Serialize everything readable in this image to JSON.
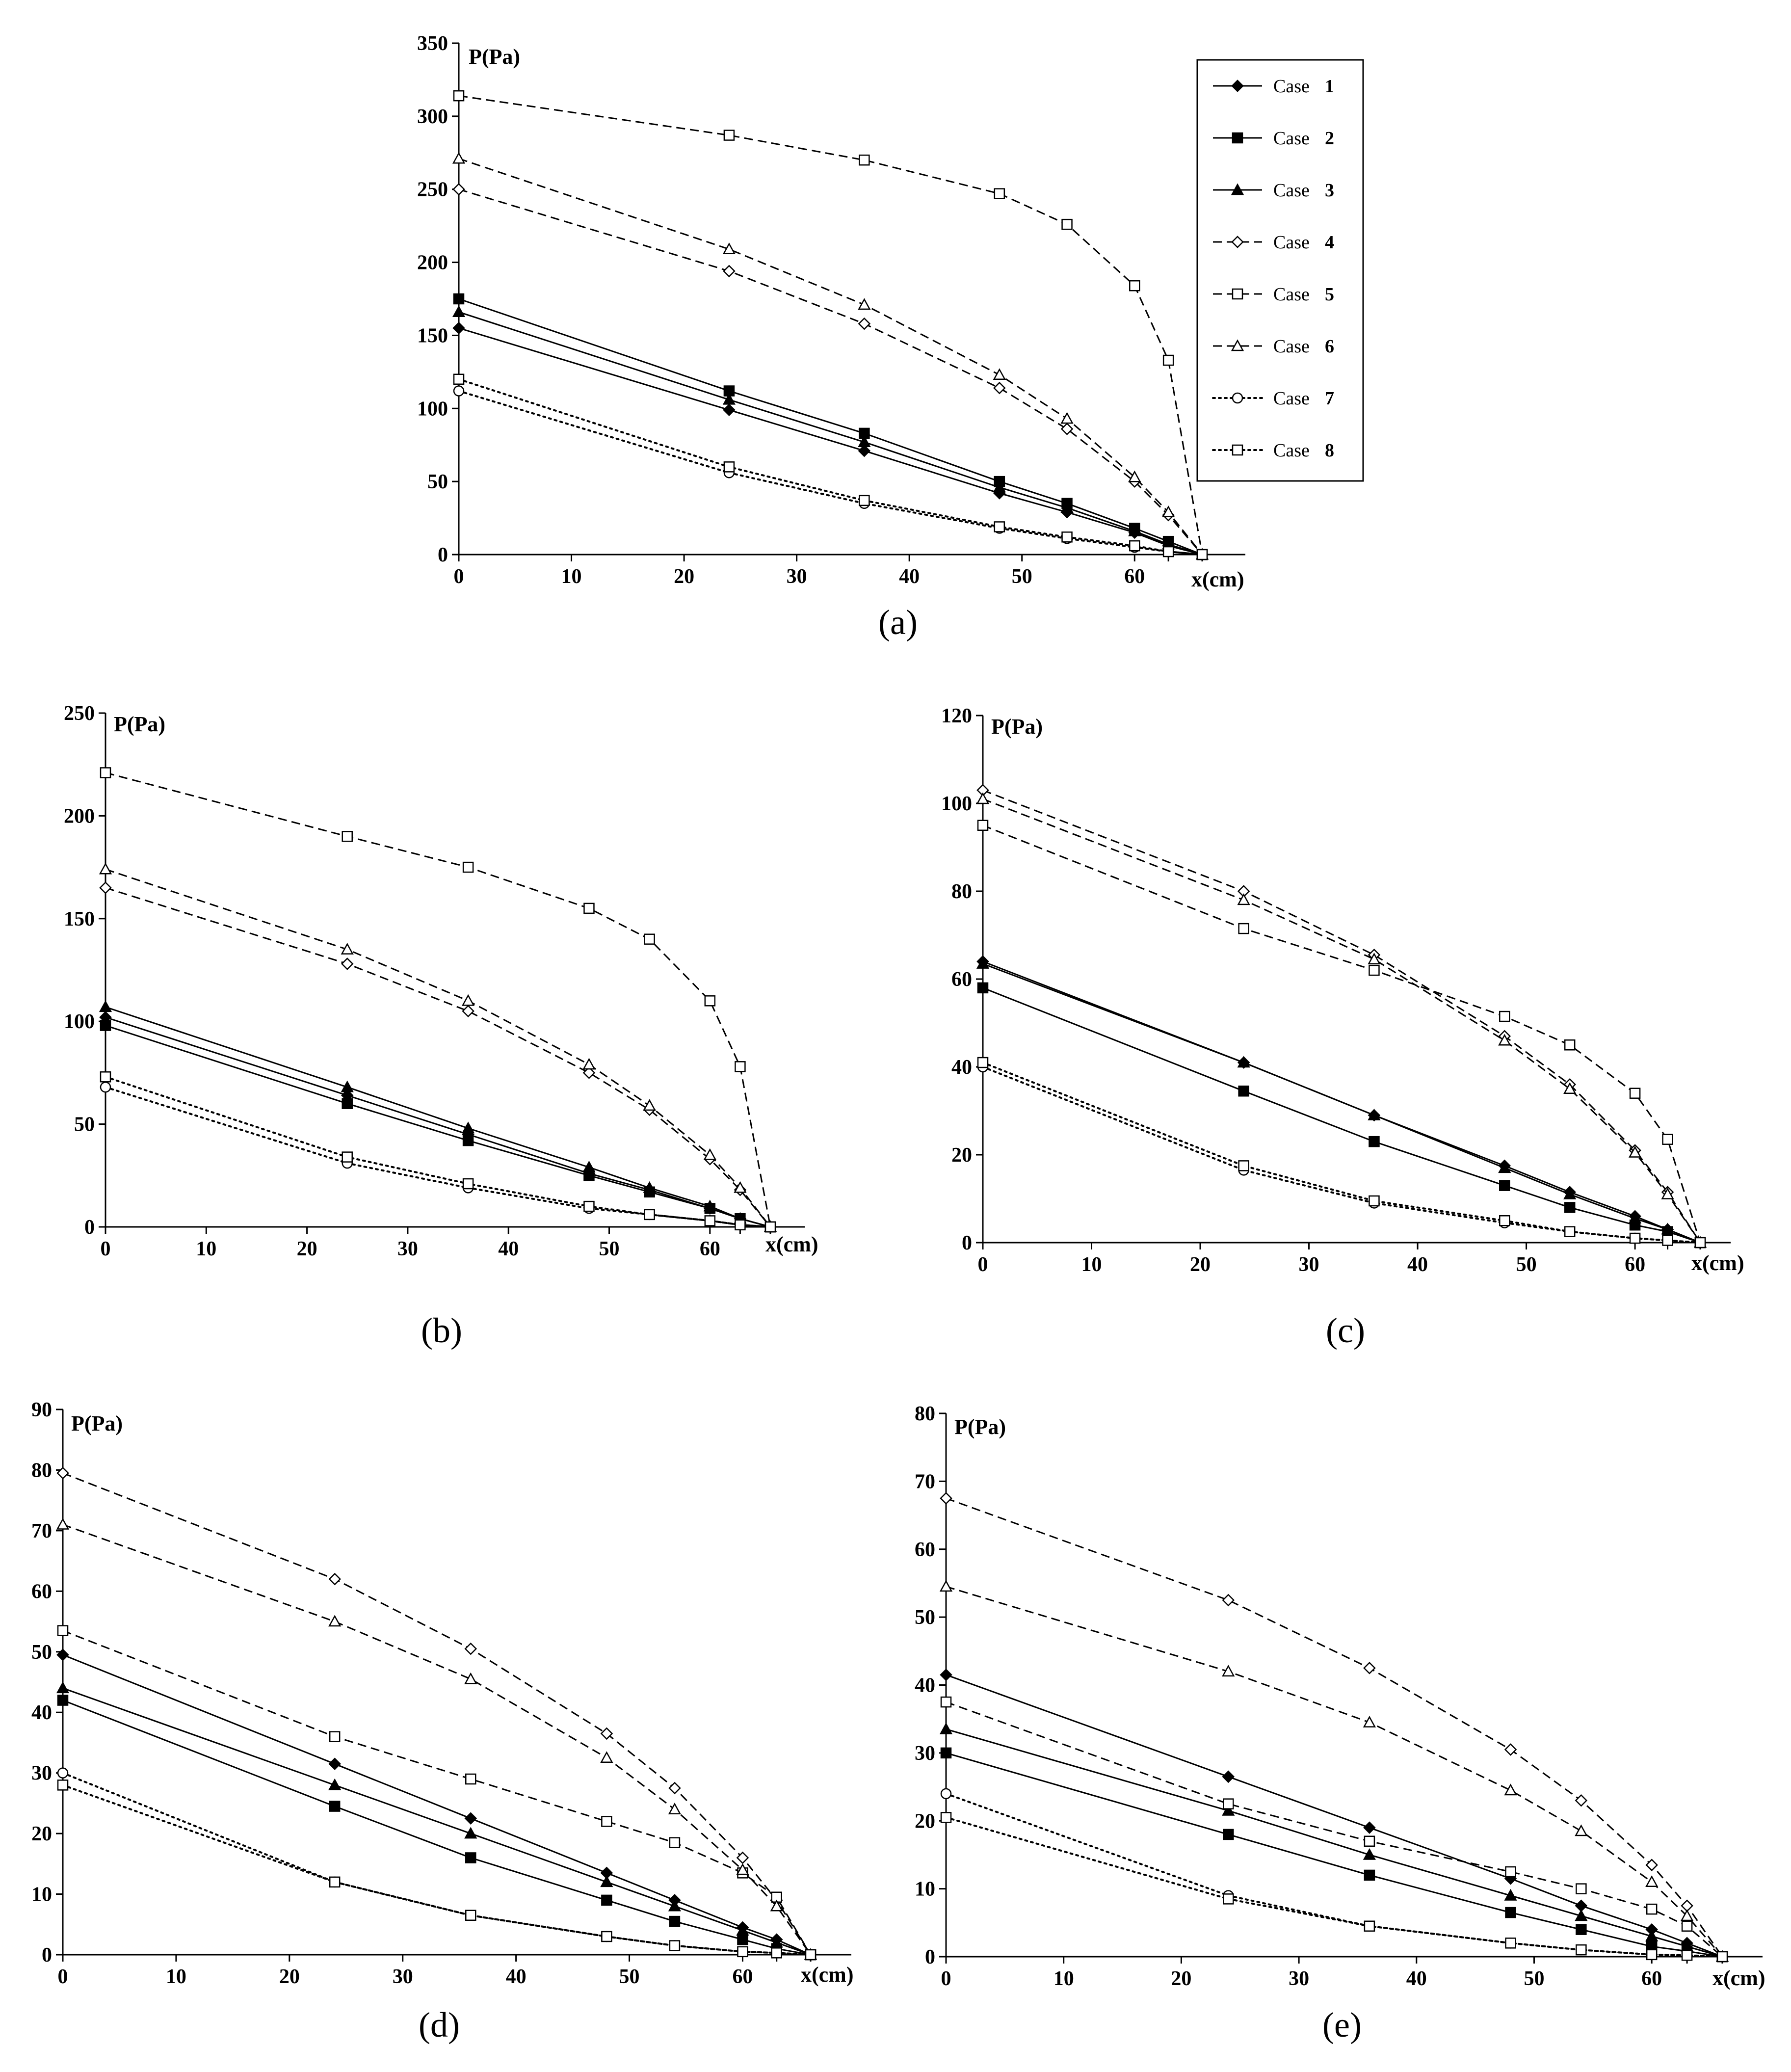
{
  "legend": {
    "case_word": "Case",
    "entries": [
      {
        "num": "1",
        "marker": "filled-diamond",
        "line": "solid"
      },
      {
        "num": "2",
        "marker": "filled-square",
        "line": "solid"
      },
      {
        "num": "3",
        "marker": "filled-triangle",
        "line": "solid"
      },
      {
        "num": "4",
        "marker": "open-diamond",
        "line": "dashed"
      },
      {
        "num": "5",
        "marker": "open-square",
        "line": "dashed"
      },
      {
        "num": "6",
        "marker": "open-triangle",
        "line": "dashed"
      },
      {
        "num": "7",
        "marker": "open-circle",
        "line": "dotted"
      },
      {
        "num": "8",
        "marker": "open-square",
        "line": "dotted"
      }
    ]
  },
  "chart_data": [
    {
      "type": "line",
      "panel_label": "(a)",
      "ylabel": "P(Pa)",
      "xlabel": "x(cm)",
      "ylim": [
        0,
        350
      ],
      "yticks": [
        "0",
        "50",
        "100",
        "150",
        "200",
        "250",
        "300",
        "350"
      ],
      "xticks": [
        "0",
        "10",
        "20",
        "30",
        "40",
        "50",
        "60"
      ],
      "x": [
        0,
        24,
        36,
        48,
        54,
        60,
        63,
        66
      ],
      "series": [
        {
          "name": "Case 1",
          "values": [
            155,
            99,
            71,
            42,
            29,
            15,
            6,
            0
          ]
        },
        {
          "name": "Case 2",
          "values": [
            175,
            112,
            83,
            50,
            35,
            18,
            9,
            0
          ]
        },
        {
          "name": "Case 3",
          "values": [
            166,
            106,
            77,
            46,
            32,
            16,
            7,
            0
          ]
        },
        {
          "name": "Case 4",
          "values": [
            250,
            194,
            158,
            114,
            86,
            50,
            27,
            0
          ]
        },
        {
          "name": "Case 5",
          "values": [
            314,
            287,
            270,
            247,
            226,
            184,
            133,
            0
          ]
        },
        {
          "name": "Case 6",
          "values": [
            271,
            209,
            171,
            123,
            93,
            53,
            29,
            0
          ]
        },
        {
          "name": "Case 7",
          "values": [
            112,
            56,
            35,
            18,
            11,
            5,
            2,
            0
          ]
        },
        {
          "name": "Case 8",
          "values": [
            120,
            60,
            37,
            19,
            12,
            6,
            2,
            0
          ]
        }
      ]
    },
    {
      "type": "line",
      "panel_label": "(b)",
      "ylabel": "P(Pa)",
      "xlabel": "x(cm)",
      "ylim": [
        0,
        250
      ],
      "yticks": [
        "0",
        "50",
        "100",
        "150",
        "200",
        "250"
      ],
      "xticks": [
        "0",
        "10",
        "20",
        "30",
        "40",
        "50",
        "60"
      ],
      "x": [
        0,
        24,
        36,
        48,
        54,
        60,
        63,
        66
      ],
      "series": [
        {
          "name": "Case 1",
          "values": [
            102,
            64,
            45,
            26,
            18,
            9,
            4,
            0
          ]
        },
        {
          "name": "Case 2",
          "values": [
            98,
            60,
            42,
            25,
            17,
            9,
            4,
            0
          ]
        },
        {
          "name": "Case 3",
          "values": [
            107,
            68,
            48,
            29,
            19,
            10,
            4,
            0
          ]
        },
        {
          "name": "Case 4",
          "values": [
            165,
            128,
            105,
            75,
            57,
            33,
            18,
            0
          ]
        },
        {
          "name": "Case 5",
          "values": [
            221,
            190,
            175,
            155,
            140,
            110,
            78,
            0
          ]
        },
        {
          "name": "Case 6",
          "values": [
            174,
            135,
            110,
            79,
            59,
            35,
            19,
            0
          ]
        },
        {
          "name": "Case 7",
          "values": [
            68,
            31,
            19,
            9,
            6,
            3,
            1,
            0
          ]
        },
        {
          "name": "Case 8",
          "values": [
            73,
            34,
            21,
            10,
            6,
            3,
            1,
            0
          ]
        }
      ]
    },
    {
      "type": "line",
      "panel_label": "(c)",
      "ylabel": "P(Pa)",
      "xlabel": "x(cm)",
      "ylim": [
        0,
        120
      ],
      "yticks": [
        "0",
        "20",
        "40",
        "60",
        "80",
        "100",
        "120"
      ],
      "xticks": [
        "0",
        "10",
        "20",
        "30",
        "40",
        "50",
        "60"
      ],
      "x": [
        0,
        24,
        36,
        48,
        54,
        60,
        63,
        66
      ],
      "series": [
        {
          "name": "Case 1",
          "values": [
            64,
            41,
            29,
            17.5,
            11.5,
            6,
            3,
            0
          ]
        },
        {
          "name": "Case 2",
          "values": [
            58,
            34.5,
            23,
            13,
            8,
            4,
            2.5,
            0
          ]
        },
        {
          "name": "Case 3",
          "values": [
            63.5,
            41,
            29,
            17,
            11,
            5.5,
            3,
            0
          ]
        },
        {
          "name": "Case 4",
          "values": [
            103,
            80,
            65.5,
            47,
            36,
            21,
            11.5,
            0
          ]
        },
        {
          "name": "Case 5",
          "values": [
            95,
            71.5,
            62,
            51.5,
            45,
            34,
            23.5,
            0
          ]
        },
        {
          "name": "Case 6",
          "values": [
            101,
            78,
            64.5,
            46,
            35,
            20.5,
            11,
            0
          ]
        },
        {
          "name": "Case 7",
          "values": [
            40,
            16.5,
            9,
            4.5,
            2.5,
            1,
            0.5,
            0
          ]
        },
        {
          "name": "Case 8",
          "values": [
            41,
            17.5,
            9.5,
            5,
            2.5,
            1,
            0.5,
            0
          ]
        }
      ]
    },
    {
      "type": "line",
      "panel_label": "(d)",
      "ylabel": "P(Pa)",
      "xlabel": "x(cm)",
      "ylim": [
        0,
        90
      ],
      "yticks": [
        "0",
        "10",
        "20",
        "30",
        "40",
        "50",
        "60",
        "70",
        "80",
        "90"
      ],
      "xticks": [
        "0",
        "10",
        "20",
        "30",
        "40",
        "50",
        "60"
      ],
      "x": [
        0,
        24,
        36,
        48,
        54,
        60,
        63,
        66
      ],
      "series": [
        {
          "name": "Case 1",
          "values": [
            49.5,
            31.5,
            22.5,
            13.5,
            9,
            4.5,
            2.5,
            0
          ]
        },
        {
          "name": "Case 2",
          "values": [
            42,
            24.5,
            16,
            9,
            5.5,
            2.5,
            1,
            0
          ]
        },
        {
          "name": "Case 3",
          "values": [
            44,
            28,
            20,
            12,
            8,
            4,
            2,
            0
          ]
        },
        {
          "name": "Case 4",
          "values": [
            79.5,
            62,
            50.5,
            36.5,
            27.5,
            16,
            9,
            0
          ]
        },
        {
          "name": "Case 5",
          "values": [
            53.5,
            36,
            29,
            22,
            18.5,
            13.5,
            9.5,
            0
          ]
        },
        {
          "name": "Case 6",
          "values": [
            71,
            55,
            45.5,
            32.5,
            24,
            14,
            8,
            0
          ]
        },
        {
          "name": "Case 7",
          "values": [
            30,
            12,
            6.5,
            3,
            1.5,
            0.5,
            0.3,
            0
          ]
        },
        {
          "name": "Case 8",
          "values": [
            28,
            12,
            6.5,
            3,
            1.5,
            0.5,
            0.3,
            0
          ]
        }
      ]
    },
    {
      "type": "line",
      "panel_label": "(e)",
      "ylabel": "P(Pa)",
      "xlabel": "x(cm)",
      "ylim": [
        0,
        80
      ],
      "yticks": [
        "0",
        "10",
        "20",
        "30",
        "40",
        "50",
        "60",
        "70",
        "80"
      ],
      "xticks": [
        "0",
        "10",
        "20",
        "30",
        "40",
        "50",
        "60"
      ],
      "x": [
        0,
        24,
        36,
        48,
        54,
        60,
        63,
        66
      ],
      "series": [
        {
          "name": "Case 1",
          "values": [
            41.5,
            26.5,
            19,
            11.5,
            7.5,
            4,
            2,
            0
          ]
        },
        {
          "name": "Case 2",
          "values": [
            30,
            18,
            12,
            6.5,
            4,
            1.5,
            0.8,
            0
          ]
        },
        {
          "name": "Case 3",
          "values": [
            33.5,
            21.5,
            15,
            9,
            6,
            3,
            1.5,
            0
          ]
        },
        {
          "name": "Case 4",
          "values": [
            67.5,
            52.5,
            42.5,
            30.5,
            23,
            13.5,
            7.5,
            0
          ]
        },
        {
          "name": "Case 5",
          "values": [
            37.5,
            22.5,
            17,
            12.5,
            10,
            7,
            4.5,
            0
          ]
        },
        {
          "name": "Case 6",
          "values": [
            54.5,
            42,
            34.5,
            24.5,
            18.5,
            11,
            6,
            0
          ]
        },
        {
          "name": "Case 7",
          "values": [
            24,
            9,
            4.5,
            2,
            1,
            0.3,
            0.2,
            0
          ]
        },
        {
          "name": "Case 8",
          "values": [
            20.5,
            8.5,
            4.5,
            2,
            1,
            0.3,
            0.2,
            0
          ]
        }
      ]
    }
  ]
}
